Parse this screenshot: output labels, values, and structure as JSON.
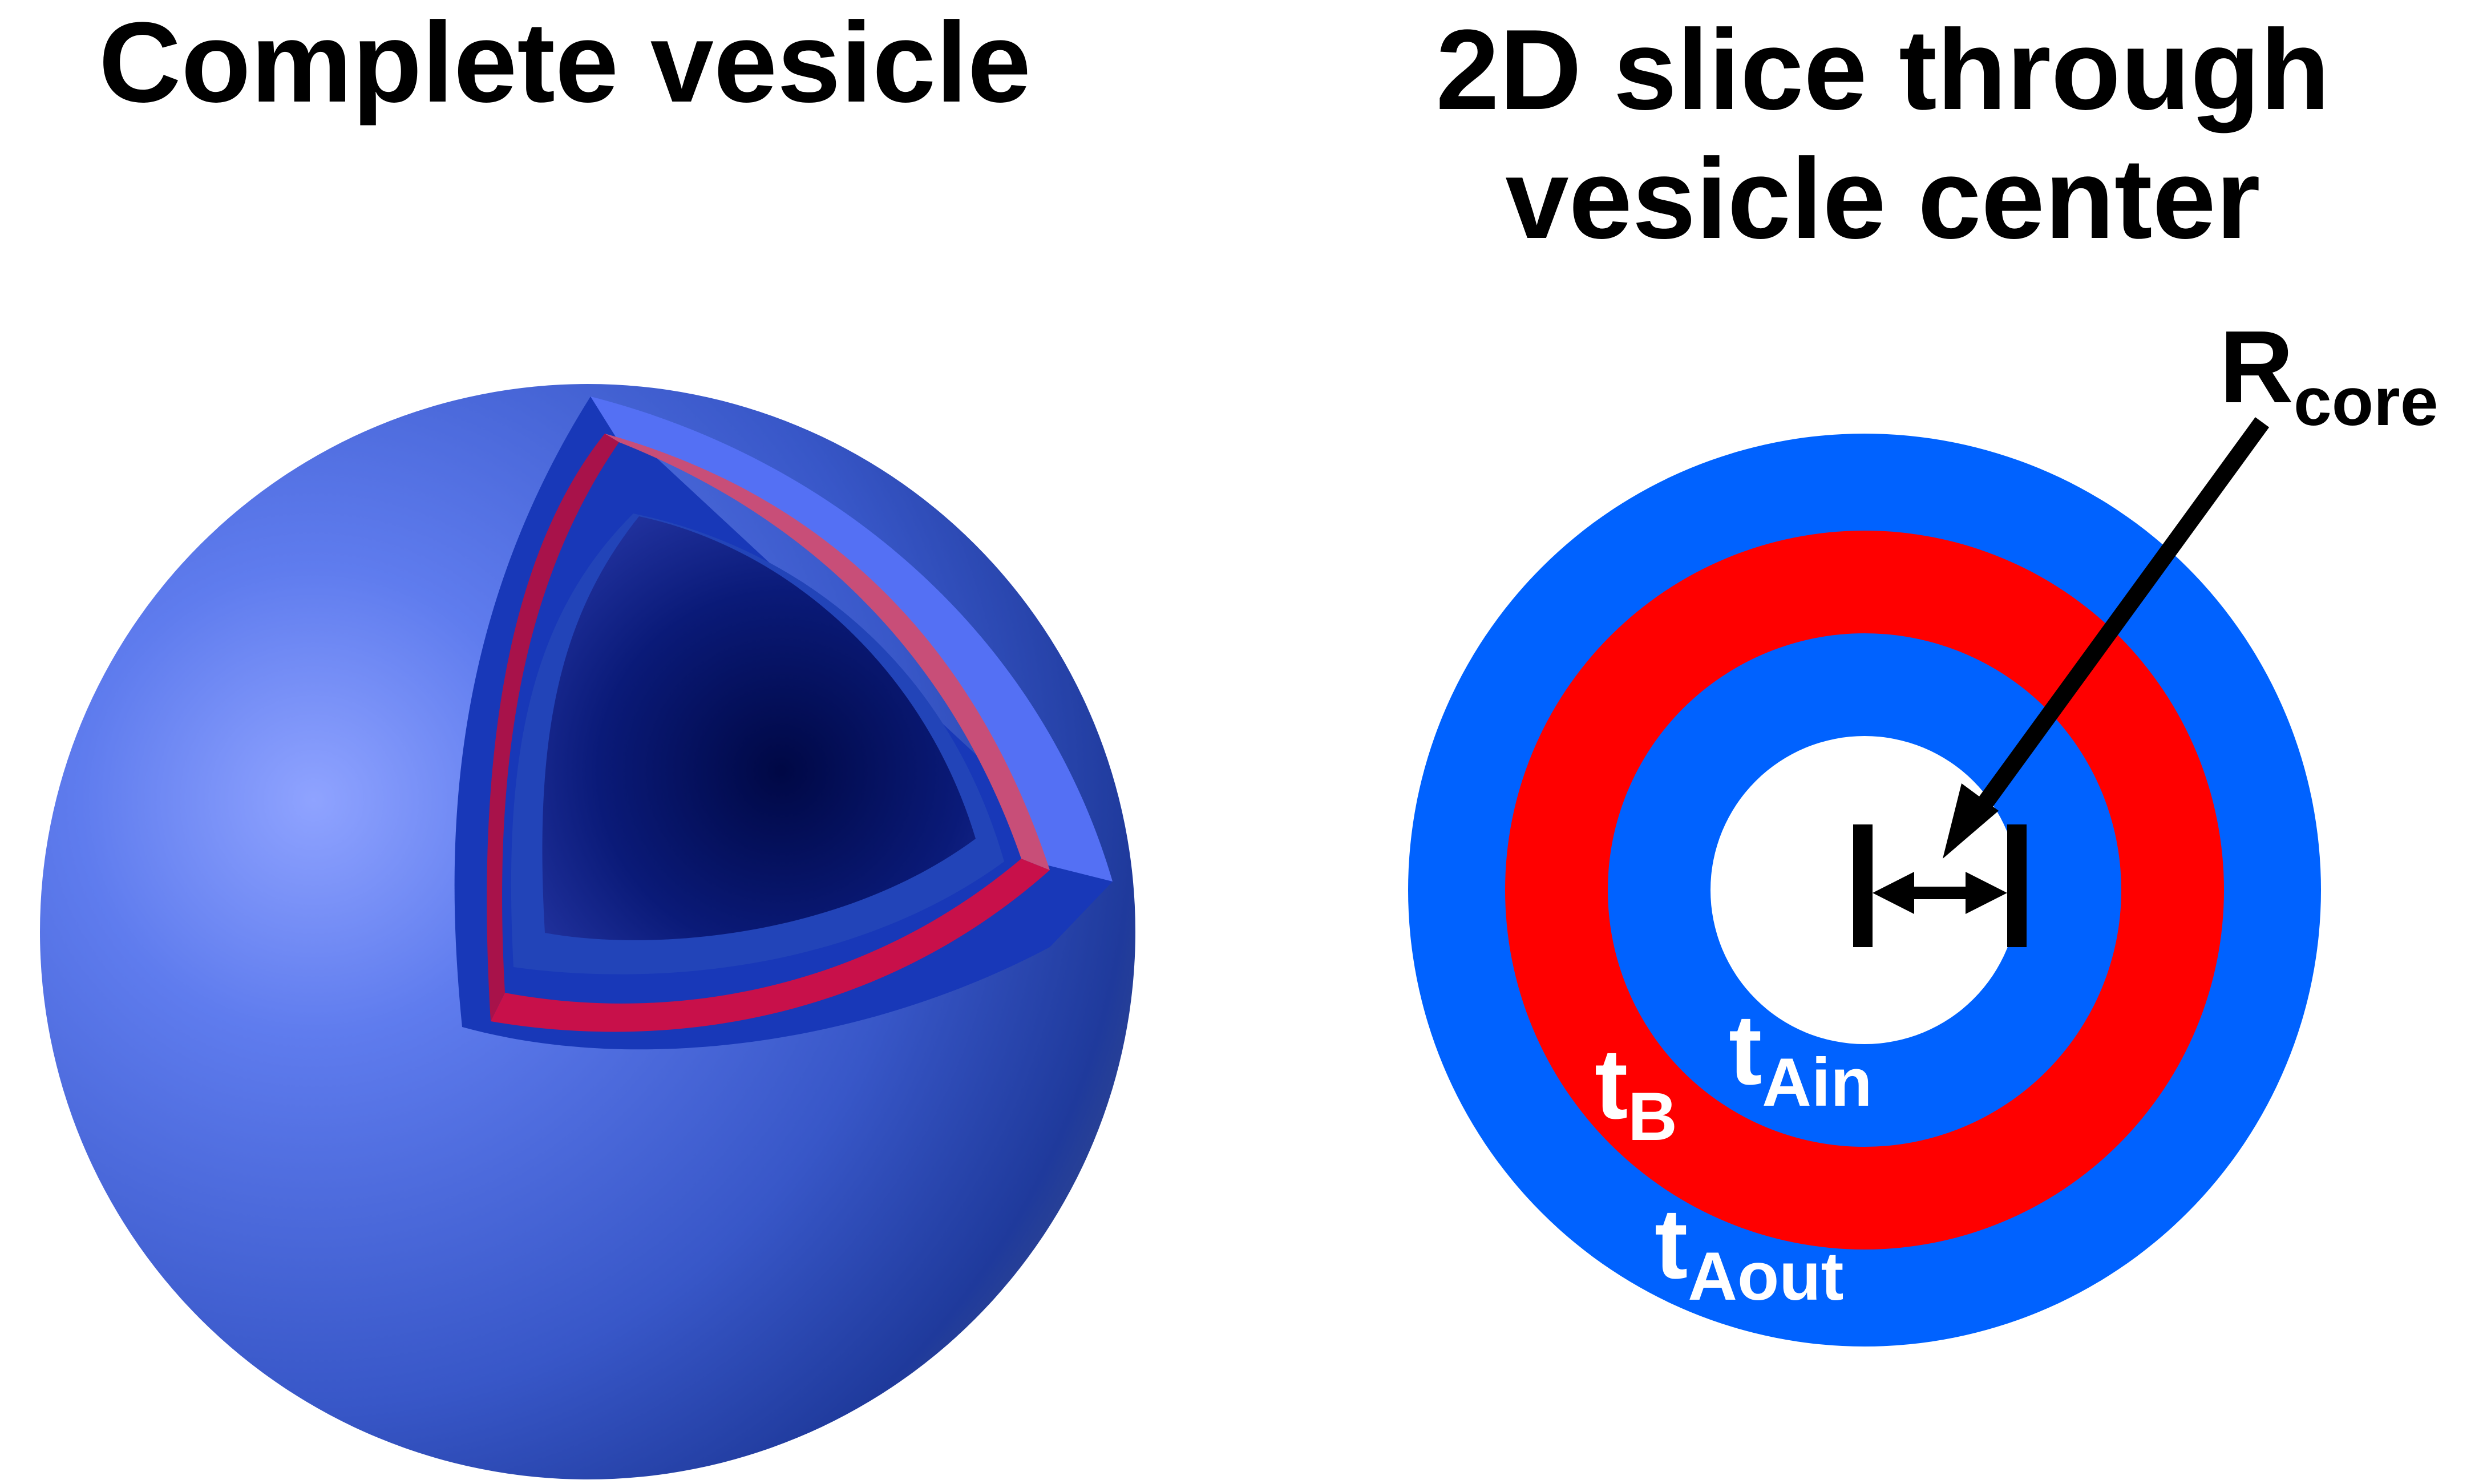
{
  "left_panel": {
    "title": "Complete vesicle"
  },
  "right_panel": {
    "title_line1": "2D slice through",
    "title_line2": "vesicle center",
    "labels": {
      "r_core_main": "R",
      "r_core_sub": "core",
      "t_b_main": "t",
      "t_b_sub": "B",
      "t_ain_main": "t",
      "t_ain_sub": "Ain",
      "t_aout_main": "t",
      "t_aout_sub": "Aout"
    }
  },
  "colors": {
    "outer_blue": "#0062ff",
    "bilayer_red": "#ff0000",
    "core_white": "#ffffff",
    "sphere_blue": "#4a6bd8",
    "cut_red": "#c8104a",
    "text_white": "#ffffff",
    "text_black": "#000000"
  }
}
